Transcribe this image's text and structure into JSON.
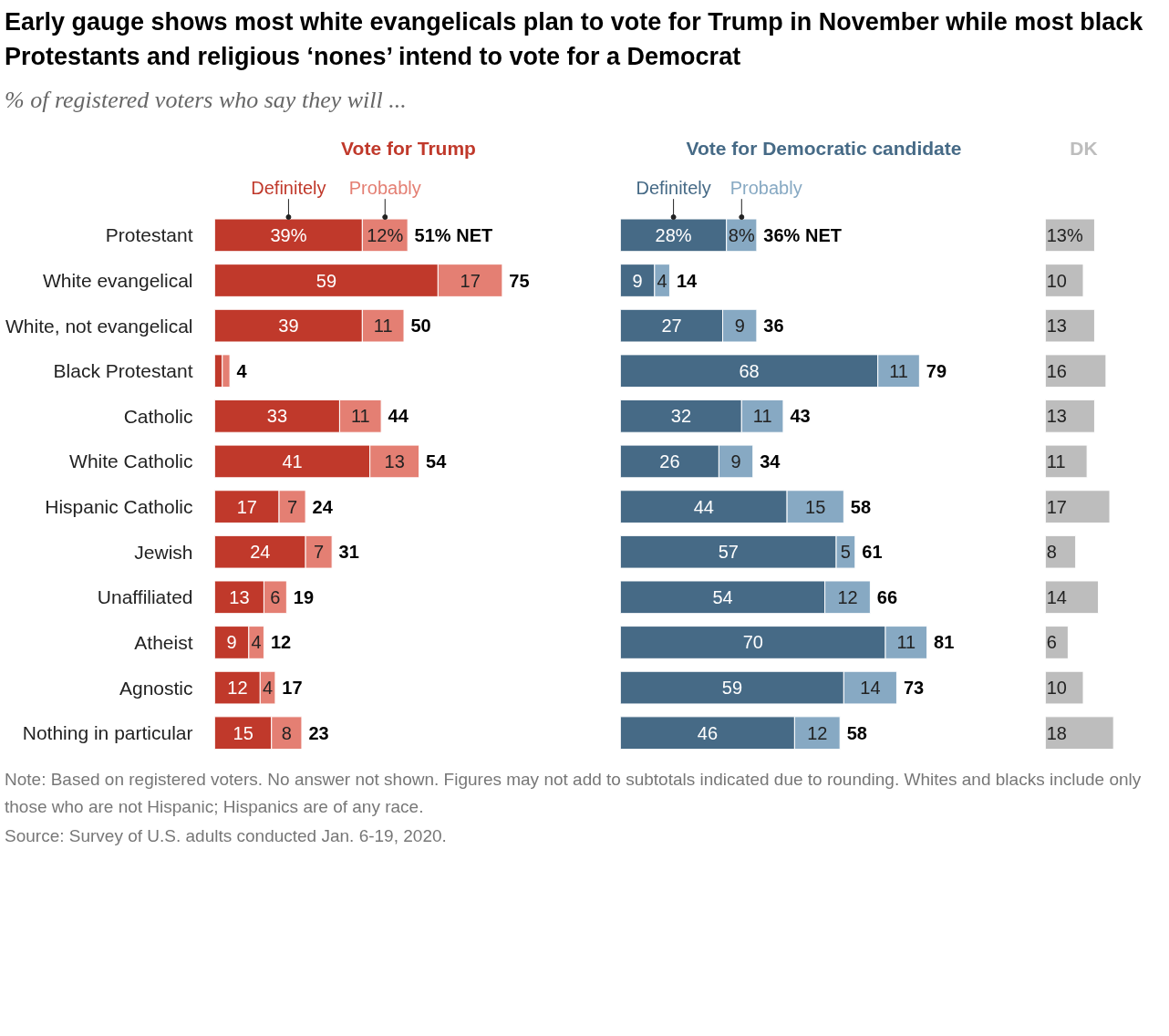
{
  "chart_data": [
    {
      "type": "other",
      "title": "Early gauge shows most white evangelicals plan to vote for Trump in November while most black Protestants and religious ‘nones’ intend to vote for a Democrat",
      "subtitle": "% of registered voters who say they will ...",
      "annotations": [
        "Note: Based on registered voters. No answer not shown. Figures may not add to subtotals indicated due to rounding. Whites and blacks include only those who are not Hispanic; Hispanics are of any race.",
        "Source: Survey of U.S. adults conducted Jan. 6-19, 2020."
      ]
    },
    {
      "type": "bar",
      "orientation": "horizontal",
      "stacked": true,
      "title": "Vote for Trump",
      "legend": "top",
      "tick_labels": "y",
      "categories": [
        "Protestant",
        "White evangelical",
        "White, not evangelical",
        "Black Protestant",
        "Catholic",
        "White Catholic",
        "Hispanic Catholic",
        "Jewish",
        "Unaffiliated",
        "Atheist",
        "Agnostic",
        "Nothing in particular"
      ],
      "series": [
        {
          "name": "Definitely",
          "color": "#c0392b",
          "values": [
            39,
            59,
            39,
            2,
            33,
            41,
            17,
            24,
            13,
            9,
            12,
            15
          ],
          "value_labels": [
            "39%",
            "59",
            "39",
            null,
            "33",
            "41",
            "17",
            "24",
            "13",
            "9",
            "12",
            "15"
          ]
        },
        {
          "name": "Probably",
          "color": "#e47f73",
          "values": [
            12,
            17,
            11,
            2,
            11,
            13,
            7,
            7,
            6,
            4,
            4,
            8
          ],
          "value_labels": [
            "12%",
            "17",
            "11",
            null,
            "11",
            "13",
            "7",
            "7",
            "6",
            "4",
            "4",
            "8"
          ]
        }
      ],
      "totals": [
        "51% NET",
        "75",
        "50",
        "4",
        "44",
        "54",
        "24",
        "31",
        "19",
        "12",
        "17",
        "23"
      ]
    },
    {
      "type": "bar",
      "orientation": "horizontal",
      "stacked": true,
      "title": "Vote for Democratic candidate",
      "legend": "top",
      "tick_labels": false,
      "series": [
        {
          "name": "Definitely",
          "color": "#466a86",
          "values": [
            28,
            9,
            27,
            68,
            32,
            26,
            44,
            57,
            54,
            70,
            59,
            46
          ],
          "value_labels": [
            "28%",
            "9",
            "27",
            "68",
            "32",
            "26",
            "44",
            "57",
            "54",
            "70",
            "59",
            "46"
          ]
        },
        {
          "name": "Probably",
          "color": "#87a9c3",
          "values": [
            8,
            4,
            9,
            11,
            11,
            9,
            15,
            5,
            12,
            11,
            14,
            12
          ],
          "value_labels": [
            "8%",
            "4",
            "9",
            "11",
            "11",
            "9",
            "15",
            "5",
            "12",
            "11",
            "14",
            "12"
          ]
        }
      ],
      "totals": [
        "36% NET",
        "14",
        "36",
        "79",
        "43",
        "34",
        "58",
        "61",
        "66",
        "81",
        "73",
        "58"
      ]
    },
    {
      "type": "bar",
      "orientation": "horizontal",
      "title": "DK",
      "tick_labels": false,
      "series": [
        {
          "color": "#bdbdbd",
          "values": [
            13,
            10,
            13,
            16,
            13,
            11,
            17,
            8,
            14,
            6,
            10,
            18
          ],
          "value_labels": [
            "13%",
            "10",
            "13",
            "16",
            "13",
            "11",
            "17",
            "8",
            "14",
            "6",
            "10",
            "18"
          ]
        }
      ]
    }
  ]
}
